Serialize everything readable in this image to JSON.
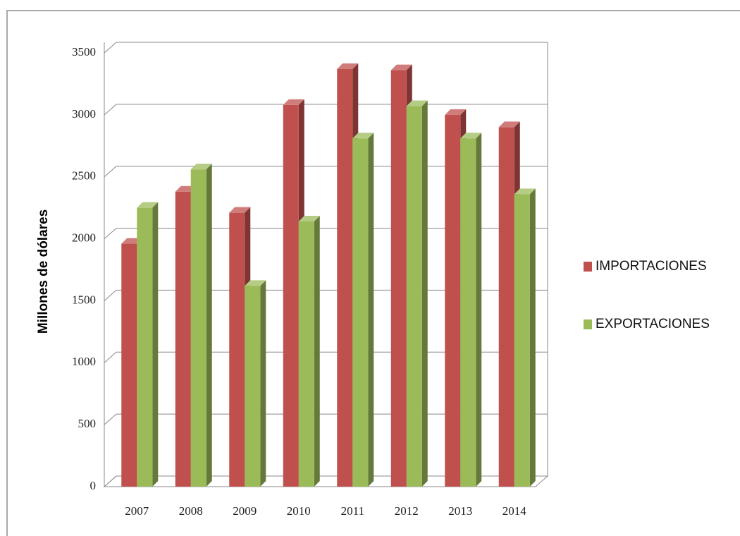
{
  "chart_data": {
    "type": "bar",
    "y_label": "Millones  de dólares",
    "categories": [
      "2007",
      "2008",
      "2009",
      "2010",
      "2011",
      "2012",
      "2013",
      "2014"
    ],
    "series": [
      {
        "name": "IMPORTACIONES",
        "color": "#c0504d",
        "values": [
          1960,
          2380,
          2210,
          3080,
          3370,
          3360,
          3000,
          2900
        ]
      },
      {
        "name": "EXPORTACIONES",
        "color": "#9bbb59",
        "values": [
          2250,
          2560,
          1620,
          2140,
          2810,
          3070,
          2810,
          2360
        ]
      }
    ],
    "ylim": [
      0,
      3500
    ],
    "yticks": [
      0,
      500,
      1000,
      1500,
      2000,
      2500,
      3000,
      3500
    ],
    "grid": true,
    "legend": "right"
  }
}
